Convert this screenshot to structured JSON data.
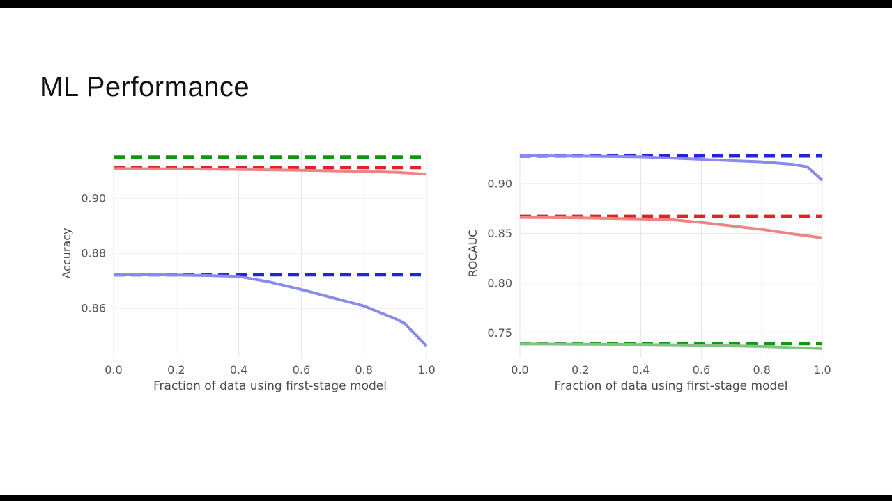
{
  "slide": {
    "title": "ML Performance"
  },
  "colors": {
    "grid": "#e6e6e6",
    "tick_text": "#555555",
    "axis_label_text": "#4a4a4a",
    "dashed_green": "#129612",
    "dashed_red": "#e02424",
    "dashed_blue": "#2424d8",
    "solid_green": "#85c285",
    "solid_red": "#ec8585",
    "solid_blue": "#8a8aec"
  },
  "chart_data": [
    {
      "type": "line",
      "title": "",
      "xlabel": "Fraction of data using first-stage model",
      "ylabel": "Accuracy",
      "xlim": [
        0.0,
        1.0
      ],
      "ylim": [
        0.842,
        0.918
      ],
      "grid": true,
      "legend": "none",
      "xticks": [
        0.0,
        0.2,
        0.4,
        0.6,
        0.8,
        1.0
      ],
      "xtick_labels": [
        "0.0",
        "0.2",
        "0.4",
        "0.6",
        "0.8",
        "1.0"
      ],
      "yticks": [
        0.86,
        0.88,
        0.9
      ],
      "ytick_labels": [
        "0.86",
        "0.88",
        "0.90"
      ],
      "series": [
        {
          "name": "green-baseline-accuracy",
          "style": "dashed",
          "color": "#129612",
          "x": [
            0.0,
            1.0
          ],
          "y": [
            0.915,
            0.915
          ]
        },
        {
          "name": "red-baseline-accuracy",
          "style": "dashed",
          "color": "#e02424",
          "x": [
            0.0,
            1.0
          ],
          "y": [
            0.9112,
            0.9112
          ]
        },
        {
          "name": "red-two-stage-accuracy",
          "style": "solid",
          "color": "#ec8585",
          "x": [
            0.0,
            0.2,
            0.4,
            0.6,
            0.8,
            0.9,
            1.0
          ],
          "y": [
            0.9108,
            0.9107,
            0.9105,
            0.9102,
            0.9098,
            0.9095,
            0.9088
          ]
        },
        {
          "name": "blue-baseline-accuracy",
          "style": "dashed",
          "color": "#2424d8",
          "x": [
            0.0,
            1.0
          ],
          "y": [
            0.8722,
            0.8722
          ]
        },
        {
          "name": "blue-two-stage-accuracy",
          "style": "solid",
          "color": "#8a8aec",
          "x": [
            0.0,
            0.1,
            0.2,
            0.3,
            0.4,
            0.5,
            0.6,
            0.7,
            0.8,
            0.9,
            0.93,
            1.0
          ],
          "y": [
            0.8722,
            0.8722,
            0.8721,
            0.8719,
            0.8716,
            0.8695,
            0.8668,
            0.8638,
            0.8608,
            0.8562,
            0.8545,
            0.8462
          ]
        }
      ]
    },
    {
      "type": "line",
      "title": "",
      "xlabel": "Fraction of data using first-stage model",
      "ylabel": "ROCAUC",
      "xlim": [
        0.0,
        1.0
      ],
      "ylim": [
        0.725,
        0.935
      ],
      "grid": true,
      "legend": "none",
      "xticks": [
        0.0,
        0.2,
        0.4,
        0.6,
        0.8,
        1.0
      ],
      "xtick_labels": [
        "0.0",
        "0.2",
        "0.4",
        "0.6",
        "0.8",
        "1.0"
      ],
      "yticks": [
        0.75,
        0.8,
        0.85,
        0.9
      ],
      "ytick_labels": [
        "0.75",
        "0.80",
        "0.85",
        "0.90"
      ],
      "series": [
        {
          "name": "blue-baseline-rocauc",
          "style": "dashed",
          "color": "#2424d8",
          "x": [
            0.0,
            1.0
          ],
          "y": [
            0.928,
            0.928
          ]
        },
        {
          "name": "blue-two-stage-rocauc",
          "style": "solid",
          "color": "#8a8aec",
          "x": [
            0.0,
            0.1,
            0.2,
            0.3,
            0.4,
            0.5,
            0.6,
            0.7,
            0.8,
            0.9,
            0.95,
            1.0
          ],
          "y": [
            0.928,
            0.9279,
            0.9277,
            0.9274,
            0.927,
            0.9258,
            0.9245,
            0.9232,
            0.922,
            0.9195,
            0.917,
            0.9035
          ]
        },
        {
          "name": "red-baseline-rocauc",
          "style": "dashed",
          "color": "#e02424",
          "x": [
            0.0,
            1.0
          ],
          "y": [
            0.867,
            0.867
          ]
        },
        {
          "name": "red-two-stage-rocauc",
          "style": "solid",
          "color": "#ec8585",
          "x": [
            0.0,
            0.1,
            0.2,
            0.3,
            0.4,
            0.5,
            0.6,
            0.7,
            0.8,
            0.9,
            1.0
          ],
          "y": [
            0.866,
            0.8658,
            0.8655,
            0.865,
            0.8645,
            0.8638,
            0.861,
            0.8575,
            0.854,
            0.8495,
            0.8455
          ]
        },
        {
          "name": "green-baseline-rocauc",
          "style": "dashed",
          "color": "#129612",
          "x": [
            0.0,
            1.0
          ],
          "y": [
            0.7392,
            0.7392
          ]
        },
        {
          "name": "green-two-stage-rocauc",
          "style": "solid",
          "color": "#85c285",
          "x": [
            0.0,
            0.2,
            0.4,
            0.6,
            0.8,
            1.0
          ],
          "y": [
            0.7388,
            0.7385,
            0.7382,
            0.7375,
            0.7362,
            0.7342
          ]
        }
      ]
    }
  ]
}
